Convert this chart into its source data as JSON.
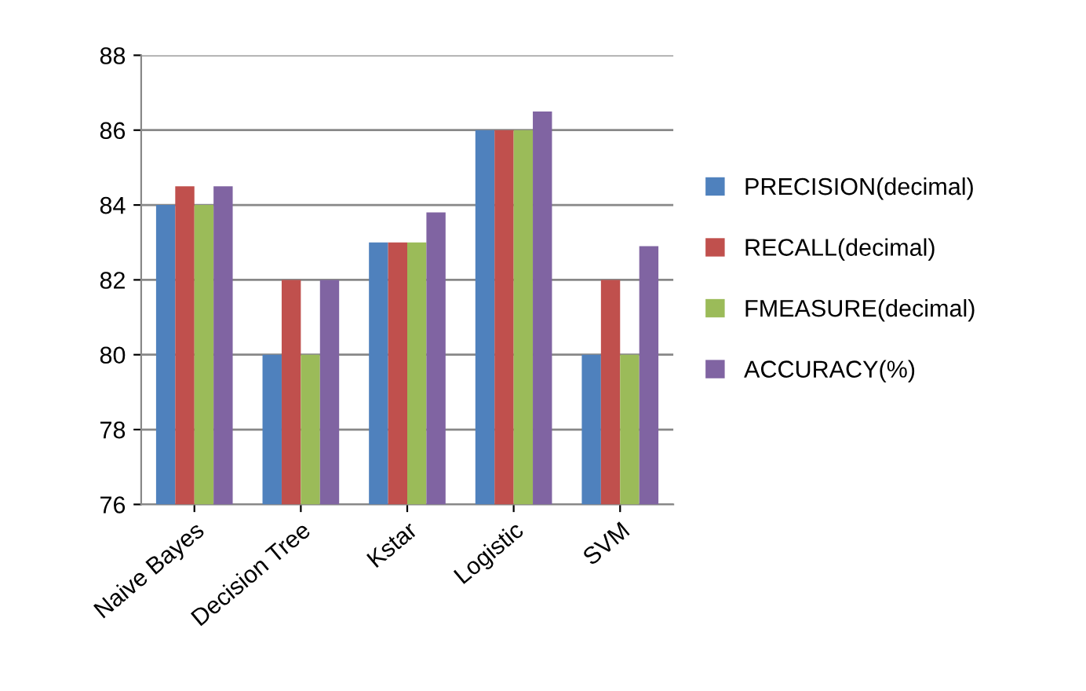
{
  "chart_data": {
    "type": "bar",
    "categories": [
      "Naive Bayes",
      "Decision Tree",
      "Kstar",
      "Logistic",
      "SVM"
    ],
    "series": [
      {
        "name": "PRECISION(decimal)",
        "color": "#4f81bd",
        "values": [
          84,
          80,
          83,
          86,
          80
        ]
      },
      {
        "name": "RECALL(decimal)",
        "color": "#c0504d",
        "values": [
          84.5,
          82,
          83,
          86,
          82
        ]
      },
      {
        "name": "FMEASURE(decimal)",
        "color": "#9bbb59",
        "values": [
          84,
          80,
          83,
          86,
          80
        ]
      },
      {
        "name": "ACCURACY(%)",
        "color": "#8064a2",
        "values": [
          84.5,
          82,
          83.8,
          86.5,
          82.9
        ]
      }
    ],
    "ylim": [
      76,
      88
    ],
    "yticks": [
      76,
      78,
      80,
      82,
      84,
      86,
      88
    ],
    "grid": "y",
    "legend": "right"
  }
}
